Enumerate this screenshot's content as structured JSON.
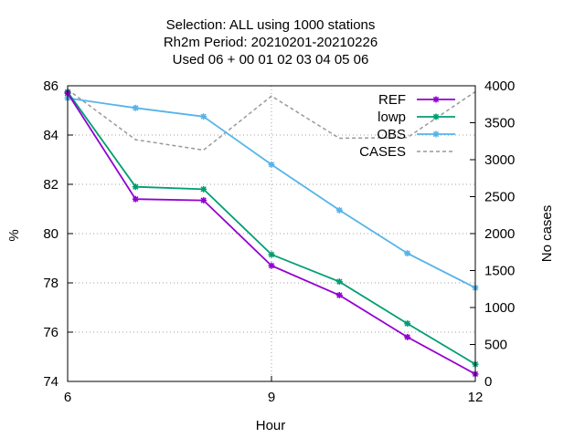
{
  "chart_data": {
    "type": "line",
    "title_lines": [
      "Selection: ALL using  1000 stations",
      "Rh2m   Period: 20210201-20210226",
      "Used  06  + 00 01 02 03 04 05 06"
    ],
    "xlabel": "Hour",
    "ylabel": "%",
    "y2label": "No cases",
    "xlim": [
      6,
      12
    ],
    "ylim": [
      74,
      86
    ],
    "y2lim": [
      0,
      4000
    ],
    "xticks": [
      "6",
      "9",
      "12"
    ],
    "yticks": [
      "74",
      "76",
      "78",
      "80",
      "82",
      "84",
      "86"
    ],
    "y2ticks": [
      "0",
      "500",
      "1000",
      "1500",
      "2000",
      "2500",
      "3000",
      "3500",
      "4000"
    ],
    "grid": true,
    "legend_position": "top-right",
    "x": [
      6,
      7,
      8,
      9,
      10,
      11,
      12
    ],
    "series": [
      {
        "name": "REF",
        "color": "#9400d3",
        "axis": "y1",
        "style": "line-points",
        "values": [
          85.7,
          81.4,
          81.35,
          78.7,
          77.5,
          75.8,
          74.3
        ]
      },
      {
        "name": "lowp",
        "color": "#009e73",
        "axis": "y1",
        "style": "line-points",
        "values": [
          85.75,
          81.9,
          81.8,
          79.15,
          78.05,
          76.35,
          74.7
        ]
      },
      {
        "name": "OBS",
        "color": "#56b4e9",
        "axis": "y1",
        "style": "line-points",
        "values": [
          85.5,
          85.1,
          84.75,
          82.8,
          80.95,
          79.2,
          77.8
        ]
      },
      {
        "name": "CASES",
        "color": "#999999",
        "axis": "y2",
        "style": "dashed",
        "values": [
          3950,
          3270,
          3130,
          3860,
          3290,
          3300,
          3920
        ]
      }
    ]
  }
}
